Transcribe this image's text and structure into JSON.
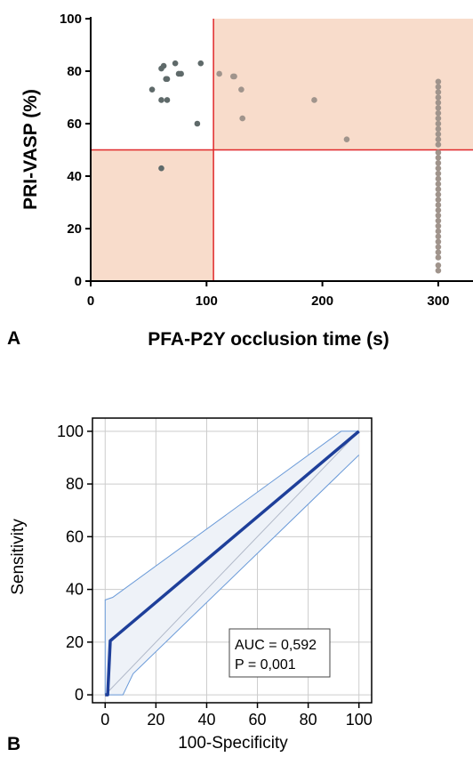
{
  "panels": {
    "a": {
      "label": "A"
    },
    "b": {
      "label": "B"
    }
  },
  "colors": {
    "shade": "#f8dccb",
    "threshold": "#e0282a",
    "point_dark": "#5f6a6a",
    "point_light": "#a0948c",
    "roc_line": "#1e3f9a",
    "ci_band": "#6a9ad8",
    "ci_fill": "#eef2f8",
    "grid": "#cccccc"
  },
  "chart_data": [
    {
      "type": "scatter",
      "xlabel": "PFA-P2Y occlusion time (s)",
      "ylabel": "PRI-VASP (%)",
      "xlim": [
        0,
        330
      ],
      "ylim": [
        0,
        100
      ],
      "xticks": [
        "0",
        "100",
        "200",
        "300"
      ],
      "yticks": [
        "0",
        "20",
        "40",
        "60",
        "80",
        "100"
      ],
      "thresholds": {
        "x": 106,
        "y": 50
      },
      "shaded_regions": [
        {
          "x": [
            106,
            330
          ],
          "y": [
            50,
            100
          ]
        },
        {
          "x": [
            0,
            106
          ],
          "y": [
            0,
            50
          ]
        }
      ],
      "series": [
        {
          "color_role": "point_dark",
          "points": [
            [
              61,
              81
            ],
            [
              63,
              82
            ],
            [
              73,
              83
            ],
            [
              66,
              77
            ],
            [
              76,
              79
            ],
            [
              78,
              79
            ],
            [
              53,
              73
            ],
            [
              65,
              77
            ],
            [
              61,
              69
            ],
            [
              66,
              69
            ],
            [
              92,
              60
            ],
            [
              95,
              83
            ],
            [
              61,
              43
            ]
          ]
        },
        {
          "color_role": "point_light",
          "points": [
            [
              111,
              79
            ],
            [
              123,
              78
            ],
            [
              124,
              78
            ],
            [
              130,
              73
            ],
            [
              131,
              62
            ],
            [
              193,
              69
            ],
            [
              221,
              54
            ],
            [
              300,
              76
            ],
            [
              300,
              74
            ],
            [
              300,
              72
            ],
            [
              300,
              70
            ],
            [
              300,
              68
            ],
            [
              300,
              66
            ],
            [
              300,
              64
            ],
            [
              300,
              62
            ],
            [
              300,
              60
            ],
            [
              300,
              58
            ],
            [
              300,
              56
            ],
            [
              300,
              54
            ],
            [
              300,
              52
            ],
            [
              300,
              49
            ],
            [
              300,
              47
            ],
            [
              300,
              45
            ],
            [
              300,
              43
            ],
            [
              300,
              41
            ],
            [
              300,
              39
            ],
            [
              300,
              37
            ],
            [
              300,
              35
            ],
            [
              300,
              33
            ],
            [
              300,
              31
            ],
            [
              300,
              29
            ],
            [
              300,
              27
            ],
            [
              300,
              25
            ],
            [
              300,
              23
            ],
            [
              300,
              21
            ],
            [
              300,
              19
            ],
            [
              300,
              17
            ],
            [
              300,
              15
            ],
            [
              300,
              13
            ],
            [
              300,
              11
            ],
            [
              300,
              9
            ],
            [
              300,
              6
            ],
            [
              300,
              4
            ]
          ]
        }
      ],
      "grid": false
    },
    {
      "type": "line",
      "xlabel": "100-Specificity",
      "ylabel": "Sensitivity",
      "xlim": [
        -5,
        105
      ],
      "ylim": [
        -3,
        105
      ],
      "xticks": [
        "0",
        "20",
        "40",
        "60",
        "80",
        "100"
      ],
      "yticks": [
        "0",
        "20",
        "40",
        "60",
        "80",
        "100"
      ],
      "grid": true,
      "roc": [
        [
          0,
          0
        ],
        [
          1,
          0
        ],
        [
          2,
          20.5
        ],
        [
          100,
          100
        ]
      ],
      "ci_upper": [
        [
          0,
          0
        ],
        [
          0,
          36
        ],
        [
          3,
          37
        ],
        [
          93,
          100
        ],
        [
          100,
          100
        ]
      ],
      "ci_lower": [
        [
          0,
          0
        ],
        [
          7,
          0
        ],
        [
          11,
          8
        ],
        [
          100,
          91
        ]
      ],
      "diagonal": [
        [
          0,
          0
        ],
        [
          100,
          100
        ]
      ],
      "stats": {
        "auc": "AUC = 0,592",
        "p": "P = 0,001"
      }
    }
  ]
}
